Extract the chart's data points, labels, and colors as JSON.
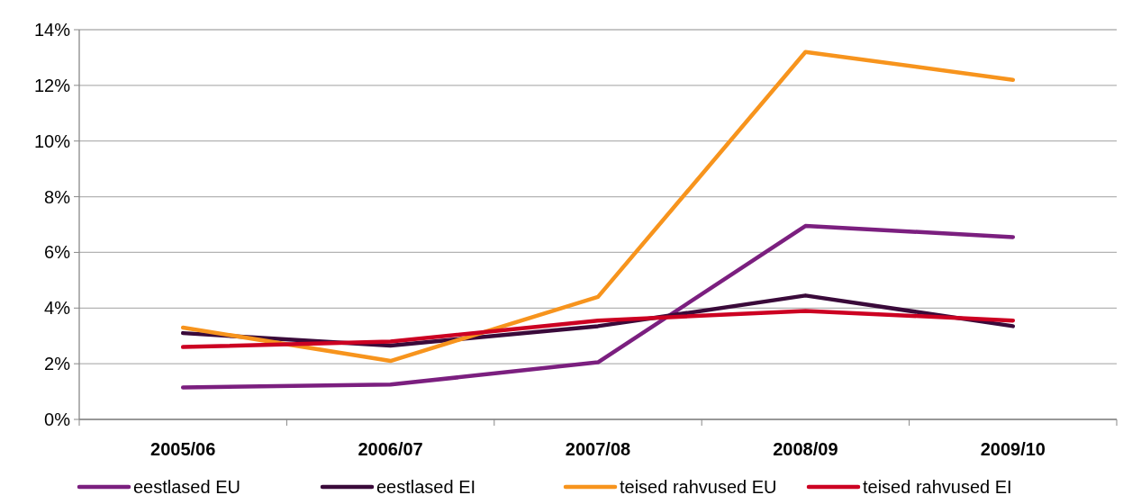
{
  "chart_data": {
    "type": "line",
    "categories": [
      "2005/06",
      "2006/07",
      "2007/08",
      "2008/09",
      "2009/10"
    ],
    "series": [
      {
        "name": "eestlased EU",
        "color": "#7b1f7f",
        "values": [
          1.15,
          1.25,
          2.05,
          6.95,
          6.55
        ]
      },
      {
        "name": "eestlased EI",
        "color": "#3a0a3a",
        "values": [
          3.1,
          2.65,
          3.35,
          4.45,
          3.35
        ]
      },
      {
        "name": "teised rahvused EU",
        "color": "#f7941d",
        "values": [
          3.3,
          2.1,
          4.4,
          13.2,
          12.2
        ]
      },
      {
        "name": "teised rahvused EI",
        "color": "#cc0022",
        "values": [
          2.6,
          2.8,
          3.55,
          3.9,
          3.55
        ]
      }
    ],
    "ylim": [
      0,
      14
    ],
    "yticks": [
      {
        "value": 0,
        "label": "0%"
      },
      {
        "value": 2,
        "label": "2%"
      },
      {
        "value": 4,
        "label": "4%"
      },
      {
        "value": 6,
        "label": "6%"
      },
      {
        "value": 8,
        "label": "8%"
      },
      {
        "value": 10,
        "label": "10%"
      },
      {
        "value": 12,
        "label": "12%"
      },
      {
        "value": 14,
        "label": "14%"
      }
    ],
    "grid": "y",
    "legend": "bottom",
    "marker": "none",
    "line_style": "solid"
  }
}
